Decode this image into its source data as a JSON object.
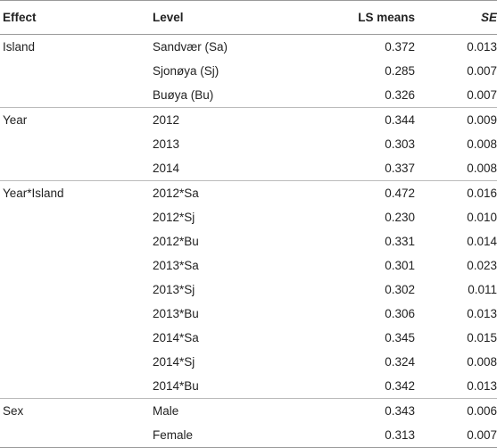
{
  "table": {
    "headers": {
      "effect": "Effect",
      "level": "Level",
      "ls_means": "LS means",
      "se": "SE"
    },
    "rows": [
      {
        "effect": "Island",
        "level": "Sandvær (Sa)",
        "ls": "0.372",
        "se": "0.013",
        "group_start": true
      },
      {
        "effect": "",
        "level": "Sjonøya (Sj)",
        "ls": "0.285",
        "se": "0.007"
      },
      {
        "effect": "",
        "level": "Buøya (Bu)",
        "ls": "0.326",
        "se": "0.007"
      },
      {
        "effect": "Year",
        "level": "2012",
        "ls": "0.344",
        "se": "0.009",
        "group_start": true
      },
      {
        "effect": "",
        "level": "2013",
        "ls": "0.303",
        "se": "0.008"
      },
      {
        "effect": "",
        "level": "2014",
        "ls": "0.337",
        "se": "0.008"
      },
      {
        "effect": "Year*Island",
        "level": "2012*Sa",
        "ls": "0.472",
        "se": "0.016",
        "group_start": true
      },
      {
        "effect": "",
        "level": "2012*Sj",
        "ls": "0.230",
        "se": "0.010"
      },
      {
        "effect": "",
        "level": "2012*Bu",
        "ls": "0.331",
        "se": "0.014"
      },
      {
        "effect": "",
        "level": "2013*Sa",
        "ls": "0.301",
        "se": "0.023"
      },
      {
        "effect": "",
        "level": "2013*Sj",
        "ls": "0.302",
        "se": "0.011"
      },
      {
        "effect": "",
        "level": "2013*Bu",
        "ls": "0.306",
        "se": "0.013"
      },
      {
        "effect": "",
        "level": "2014*Sa",
        "ls": "0.345",
        "se": "0.015"
      },
      {
        "effect": "",
        "level": "2014*Sj",
        "ls": "0.324",
        "se": "0.008"
      },
      {
        "effect": "",
        "level": "2014*Bu",
        "ls": "0.342",
        "se": "0.013"
      },
      {
        "effect": "Sex",
        "level": "Male",
        "ls": "0.343",
        "se": "0.006",
        "group_start": true
      },
      {
        "effect": "",
        "level": "Female",
        "ls": "0.313",
        "se": "0.007"
      }
    ]
  }
}
